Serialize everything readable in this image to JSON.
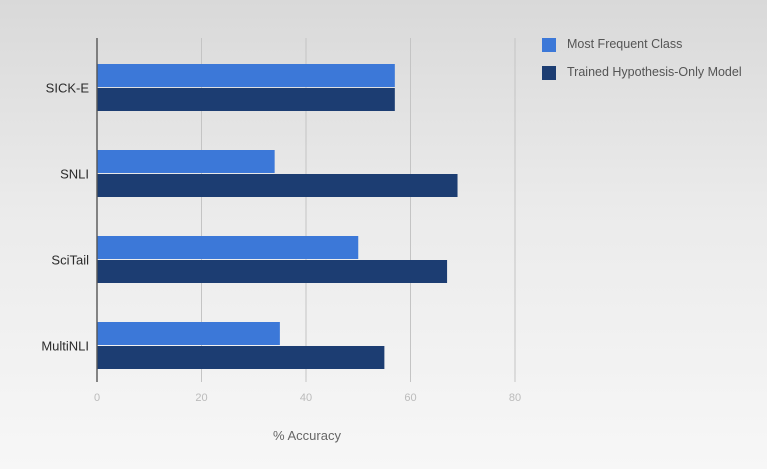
{
  "chart_data": {
    "type": "bar",
    "orientation": "horizontal",
    "categories": [
      "SICK-E",
      "SNLI",
      "SciTail",
      "MultiNLI"
    ],
    "series": [
      {
        "name": "Most Frequent Class",
        "color": "#3c78d8",
        "values": [
          57,
          34,
          50,
          35
        ]
      },
      {
        "name": "Trained Hypothesis-Only Model",
        "color": "#1c3d72",
        "values": [
          57,
          69,
          67,
          55
        ]
      }
    ],
    "xlabel": "% Accuracy",
    "ylabel": "",
    "xlim": [
      0,
      80
    ],
    "xticks": [
      0,
      20,
      40,
      60,
      80
    ],
    "grid": true,
    "legend_position": "top-right"
  }
}
